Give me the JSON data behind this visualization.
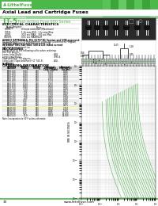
{
  "title_company": "Littelfuse",
  "title_section": "Axial Lead and Cartridge Fuses",
  "subtitle": "Bulletin/Library",
  "product": "LT-5",
  "product_desc": "Fast-Acting Fuse 600 Series",
  "header_bg": "#4db84a",
  "page_bg": "#ffffff",
  "green_stripe": "#4db84a",
  "green_light": "#7dd67a",
  "ordering_data": [
    [
      "0662.125",
      "0.125",
      "250",
      "15.000",
      "0.000"
    ],
    [
      "0662.200",
      "0.200",
      "250",
      "5.800",
      "0.000"
    ],
    [
      "0662.250",
      "0.250",
      "250",
      "3.800",
      "0.001"
    ],
    [
      "0662.315",
      "0.315",
      "250",
      "2.400",
      "0.001"
    ],
    [
      "0662.400",
      "0.400",
      "250",
      "1.550",
      "0.001"
    ],
    [
      "0662.500",
      "0.500",
      "250",
      "0.970",
      "0.003"
    ],
    [
      "0662.630",
      "0.630",
      "250",
      "0.620",
      "0.005"
    ],
    [
      "0662.750",
      "0.750",
      "250",
      "0.430",
      "0.008"
    ],
    [
      "06621.00",
      "1.00",
      "250",
      "0.280",
      "0.017"
    ],
    [
      "06621.25",
      "1.25",
      "250",
      "0.190",
      "0.029"
    ],
    [
      "06621.60",
      "1.60",
      "250",
      "0.120",
      "0.055"
    ],
    [
      "06622.00",
      "2.00",
      "250",
      "0.076",
      "0.108"
    ],
    [
      "06622.50",
      "2.50",
      "250",
      "0.052",
      "0.205"
    ],
    [
      "06623.15",
      "3.15",
      "250",
      "0.034",
      "0.426"
    ],
    [
      "06624.00",
      "4.00",
      "250",
      "0.023",
      "0.875"
    ],
    [
      "06625.00",
      "5.00",
      "250",
      "0.010",
      "2.150"
    ],
    [
      "06626.30",
      "6.30",
      "250",
      "0.006",
      "5.080"
    ],
    [
      "06628.00",
      "8.00",
      "250",
      "0.005",
      "12.000"
    ],
    [
      "066210.0",
      "10.0",
      "250",
      "0.004",
      "29.000"
    ]
  ],
  "highlighted_row": 15,
  "elec_rows": [
    [
      "100%",
      "4 hours minimum (Maximum)"
    ],
    [
      "135%",
      "1 Hr max 850 - 1 hr max Blue"
    ],
    [
      "200%",
      "30.0 sec MAX - 300 sec Max"
    ],
    [
      "1000%",
      "0.01 sec MAXIMUM"
    ]
  ],
  "packaging_rows": [
    [
      "Box 100 pieces:",
      ""
    ],
    [
      "Loose Lead (Bulk):",
      "HGG"
    ],
    [
      "Long Lead (Bulk):",
      "7990.4"
    ],
    [
      "Tape and Reel 750 pieces:",
      ""
    ],
    [
      "Long Lead (Tape and Reel) (LT 745-3):",
      "ZRLL"
    ]
  ],
  "website": "www.littelfuse.com",
  "page_num": "33",
  "chart_title": "Average Time-Current Curves",
  "chart_xlabel": "CURRENT IN AMPERES",
  "chart_ylabel": "TIME IN SECONDS",
  "ampere_ratings": [
    0.125,
    0.2,
    0.25,
    0.315,
    0.4,
    0.5,
    0.63,
    0.75,
    1.0,
    1.25,
    1.6,
    2.0,
    2.5,
    3.15,
    4.0,
    5.0,
    6.3,
    8.0,
    10.0
  ]
}
